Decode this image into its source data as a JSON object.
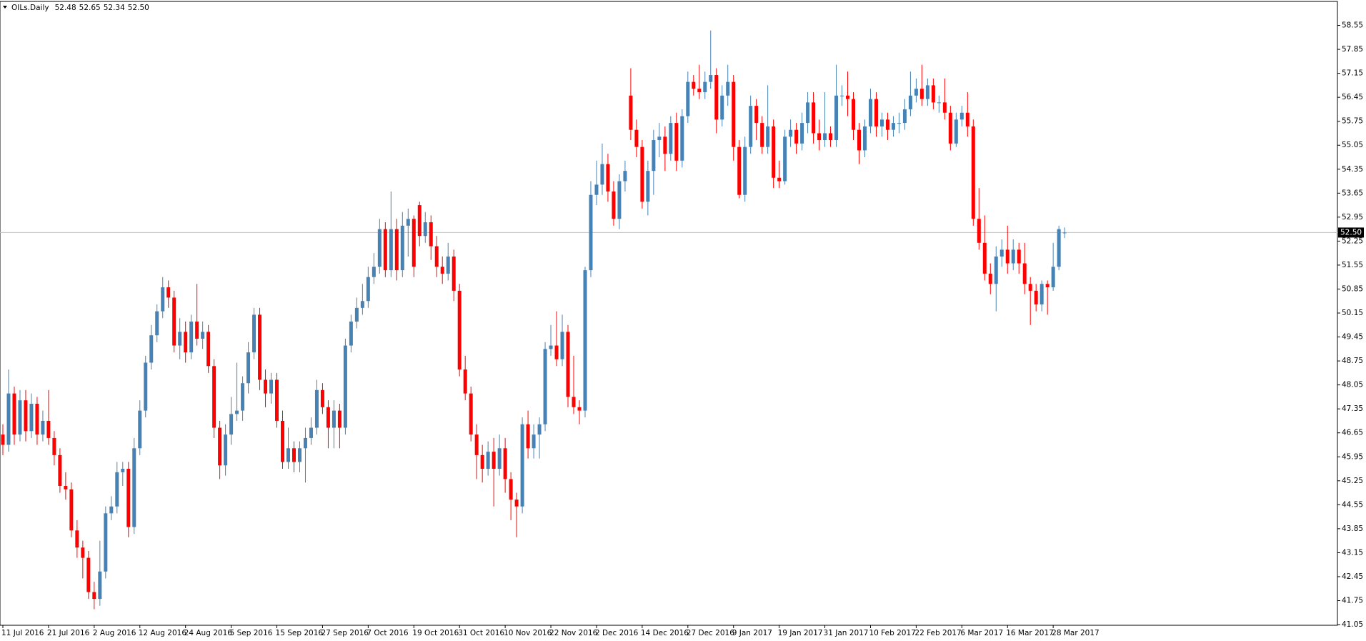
{
  "chart_data": {
    "type": "candlestick",
    "title": "OILs.Daily",
    "ohlc_labels": [
      "52.48",
      "52.65",
      "52.34",
      "52.50"
    ],
    "up_color": "#4682b4",
    "down_color": "#ff0000",
    "price_line": {
      "value": 52.5,
      "label": "52.50"
    },
    "ylim": [
      41.03,
      59.25
    ],
    "yticks": [
      41.05,
      41.75,
      42.45,
      43.15,
      43.85,
      44.55,
      45.25,
      45.95,
      46.65,
      47.35,
      48.05,
      48.75,
      49.45,
      50.15,
      50.85,
      51.55,
      52.25,
      52.95,
      53.65,
      54.35,
      55.05,
      55.75,
      56.45,
      57.15,
      57.85,
      58.55
    ],
    "categories": [
      "11 Jul 2016",
      null,
      null,
      null,
      null,
      null,
      null,
      null,
      "21 Jul 2016",
      null,
      null,
      null,
      null,
      null,
      null,
      null,
      "2 Aug 2016",
      null,
      null,
      null,
      null,
      null,
      null,
      null,
      "12 Aug 2016",
      null,
      null,
      null,
      null,
      null,
      null,
      null,
      "24 Aug 2016",
      null,
      null,
      null,
      null,
      null,
      null,
      null,
      "5 Sep 2016",
      null,
      null,
      null,
      null,
      null,
      null,
      null,
      "15 Sep 2016",
      null,
      null,
      null,
      null,
      null,
      null,
      null,
      "27 Sep 2016",
      null,
      null,
      null,
      null,
      null,
      null,
      null,
      "7 Oct 2016",
      null,
      null,
      null,
      null,
      null,
      null,
      null,
      "19 Oct 2016",
      null,
      null,
      null,
      null,
      null,
      null,
      null,
      "31 Oct 2016",
      null,
      null,
      null,
      null,
      null,
      null,
      null,
      "10 Nov 2016",
      null,
      null,
      null,
      null,
      null,
      null,
      null,
      "22 Nov 2016",
      null,
      null,
      null,
      null,
      null,
      null,
      null,
      "2 Dec 2016",
      null,
      null,
      null,
      null,
      null,
      null,
      null,
      "14 Dec 2016",
      null,
      null,
      null,
      null,
      null,
      null,
      null,
      "27 Dec 2016",
      null,
      null,
      null,
      null,
      null,
      null,
      null,
      "9 Jan 2017",
      null,
      null,
      null,
      null,
      null,
      null,
      null,
      "19 Jan 2017",
      null,
      null,
      null,
      null,
      null,
      null,
      null,
      "31 Jan 2017",
      null,
      null,
      null,
      null,
      null,
      null,
      null,
      "10 Feb 2017",
      null,
      null,
      null,
      null,
      null,
      null,
      null,
      "22 Feb 2017",
      null,
      null,
      null,
      null,
      null,
      null,
      null,
      "6 Mar 2017",
      null,
      null,
      null,
      null,
      null,
      null,
      null,
      "16 Mar 2017",
      null,
      null,
      null,
      null,
      null,
      null,
      null,
      "28 Mar 2017",
      null,
      null
    ],
    "open": [
      46.6,
      46.3,
      47.8,
      46.6,
      47.6,
      46.7,
      47.5,
      46.6,
      47.0,
      46.5,
      46.0,
      45.1,
      45.0,
      43.8,
      43.3,
      43.0,
      42.0,
      41.8,
      42.6,
      44.3,
      44.5,
      45.5,
      45.6,
      43.9,
      46.2,
      47.3,
      48.7,
      49.5,
      50.2,
      50.9,
      50.6,
      49.2,
      49.6,
      49.0,
      49.9,
      49.4,
      49.6,
      48.6,
      46.8,
      45.7,
      46.6,
      47.2,
      47.3,
      48.1,
      49.0,
      50.1,
      48.2,
      47.8,
      48.2,
      47.0,
      45.8,
      46.2,
      45.8,
      46.2,
      46.5,
      46.8,
      47.9,
      47.4,
      46.8,
      47.3,
      46.8,
      49.2,
      49.9,
      50.3,
      50.5,
      51.2,
      51.5,
      52.6,
      51.4,
      52.6,
      51.4,
      52.7,
      52.9,
      53.3,
      52.4,
      52.8,
      52.1,
      51.5,
      51.3,
      51.8,
      50.8,
      48.5,
      47.8,
      46.6,
      46.0,
      45.6,
      46.1,
      45.6,
      46.2,
      45.3,
      44.7,
      44.5,
      46.9,
      46.2,
      46.6,
      46.9,
      49.1,
      49.2,
      48.8,
      49.6,
      47.7,
      47.4,
      47.3,
      51.4,
      53.6,
      53.9,
      54.5,
      53.7,
      52.9,
      54.0,
      56.5,
      55.5,
      55.0,
      53.4,
      54.3,
      55.2,
      55.3,
      54.8,
      55.7,
      54.6,
      55.9,
      56.9,
      56.7,
      56.6,
      56.9,
      57.1,
      55.8,
      56.5,
      56.9,
      55.0,
      53.6,
      55.0,
      56.2,
      55.7,
      55.0,
      55.6,
      54.1,
      54.0,
      55.3,
      55.5,
      55.1,
      55.7,
      56.3,
      55.4,
      55.2,
      55.4,
      55.2,
      56.5,
      56.5,
      56.4,
      55.5,
      54.9,
      55.6,
      56.4,
      55.6,
      55.8,
      55.5,
      55.7,
      55.7,
      56.1,
      56.5,
      56.7,
      56.4,
      56.8,
      56.3,
      56.3,
      56.0,
      55.1,
      55.8,
      56.0,
      55.6,
      52.9,
      52.2,
      51.3,
      51.0,
      51.8,
      52.0,
      51.6,
      52.0,
      51.6,
      51.0,
      50.8,
      50.4,
      51.0,
      50.9,
      51.5,
      52.48
    ],
    "high": [
      46.9,
      48.5,
      48.0,
      47.9,
      47.9,
      47.8,
      47.7,
      47.3,
      47.9,
      46.7,
      46.2,
      45.5,
      45.2,
      44.1,
      43.5,
      43.2,
      42.3,
      43.5,
      44.5,
      44.8,
      45.8,
      45.8,
      45.8,
      46.5,
      47.6,
      48.9,
      49.8,
      50.4,
      51.2,
      51.1,
      50.8,
      50.0,
      49.9,
      50.1,
      51.0,
      49.9,
      49.8,
      48.8,
      47.0,
      46.9,
      47.7,
      48.7,
      48.3,
      49.3,
      50.3,
      50.3,
      48.5,
      48.4,
      48.4,
      47.3,
      46.8,
      46.4,
      46.4,
      46.8,
      47.1,
      48.2,
      48.1,
      47.6,
      47.6,
      47.5,
      49.4,
      50.1,
      50.6,
      51.0,
      51.5,
      51.9,
      52.9,
      52.8,
      53.7,
      52.9,
      53.1,
      53.2,
      53.0,
      53.4,
      53.1,
      53.0,
      52.4,
      51.8,
      52.2,
      52.0,
      51.0,
      48.9,
      48.0,
      46.9,
      46.3,
      46.4,
      46.5,
      46.6,
      46.5,
      45.5,
      44.9,
      47.1,
      47.3,
      46.9,
      47.1,
      49.3,
      49.8,
      50.2,
      50.1,
      49.8,
      48.9,
      47.6,
      51.5,
      54.0,
      54.6,
      55.1,
      54.8,
      54.0,
      54.2,
      54.6,
      57.3,
      55.8,
      55.2,
      54.6,
      55.5,
      55.7,
      55.6,
      55.9,
      56.0,
      56.1,
      57.2,
      57.1,
      57.4,
      57.2,
      58.4,
      57.3,
      56.8,
      57.4,
      57.1,
      55.2,
      55.3,
      56.5,
      56.4,
      55.9,
      56.8,
      55.8,
      54.6,
      55.5,
      55.8,
      55.7,
      56.0,
      56.6,
      56.6,
      55.8,
      56.6,
      55.6,
      57.4,
      56.8,
      57.2,
      56.6,
      55.7,
      55.8,
      56.7,
      56.6,
      56.0,
      56.0,
      55.9,
      56.0,
      56.4,
      57.2,
      57.0,
      57.4,
      57.0,
      57.0,
      56.5,
      57.0,
      56.2,
      56.0,
      56.2,
      56.6,
      55.8,
      53.8,
      53.0,
      51.6,
      52.1,
      52.3,
      52.7,
      52.3,
      52.2,
      52.2,
      51.2,
      51.0,
      51.1,
      51.1,
      52.2,
      52.7,
      52.65
    ],
    "low": [
      46.0,
      46.1,
      46.3,
      46.4,
      46.4,
      46.5,
      46.3,
      46.4,
      46.3,
      45.7,
      44.9,
      44.7,
      43.6,
      43.0,
      42.4,
      41.8,
      41.5,
      41.6,
      42.4,
      44.1,
      44.3,
      45.1,
      43.6,
      43.7,
      46.0,
      47.1,
      48.5,
      49.3,
      50.0,
      50.3,
      49.0,
      48.8,
      48.7,
      48.8,
      49.2,
      49.1,
      48.4,
      46.5,
      45.3,
      45.4,
      46.3,
      47.0,
      47.0,
      47.8,
      48.8,
      47.9,
      47.4,
      47.5,
      46.8,
      45.6,
      45.6,
      45.5,
      45.5,
      45.2,
      46.3,
      46.6,
      47.2,
      46.2,
      46.2,
      46.2,
      46.6,
      49.0,
      49.7,
      50.1,
      50.3,
      51.0,
      51.3,
      51.2,
      51.2,
      51.1,
      51.2,
      51.8,
      51.2,
      52.1,
      52.2,
      51.7,
      51.2,
      51.0,
      51.1,
      50.5,
      48.3,
      47.6,
      46.4,
      45.3,
      45.2,
      45.4,
      44.5,
      45.4,
      44.9,
      44.1,
      43.6,
      44.3,
      45.9,
      45.9,
      45.9,
      46.7,
      48.9,
      48.6,
      48.6,
      47.4,
      47.2,
      46.9,
      47.1,
      51.2,
      53.3,
      53.6,
      53.4,
      52.7,
      52.6,
      53.7,
      55.2,
      54.7,
      53.2,
      53.0,
      53.6,
      54.7,
      54.3,
      54.6,
      54.3,
      54.4,
      55.7,
      56.5,
      56.4,
      56.4,
      56.7,
      55.4,
      55.6,
      56.2,
      54.6,
      53.5,
      53.4,
      54.8,
      55.2,
      54.8,
      54.8,
      53.8,
      53.8,
      53.9,
      55.0,
      54.8,
      54.9,
      55.4,
      55.1,
      54.9,
      55.0,
      55.0,
      55.0,
      56.2,
      55.9,
      55.2,
      54.5,
      54.7,
      55.4,
      55.3,
      55.3,
      55.2,
      55.3,
      55.4,
      55.5,
      55.9,
      56.3,
      56.2,
      56.2,
      56.1,
      56.0,
      55.8,
      54.9,
      55.0,
      55.6,
      55.3,
      52.7,
      52.0,
      51.1,
      50.7,
      50.2,
      51.5,
      51.3,
      51.4,
      51.3,
      50.7,
      49.8,
      50.2,
      50.2,
      50.1,
      50.8,
      51.4,
      52.34
    ],
    "close": [
      46.3,
      47.8,
      46.6,
      47.6,
      46.7,
      47.5,
      46.6,
      47.0,
      46.5,
      46.0,
      45.1,
      45.0,
      43.8,
      43.3,
      43.0,
      42.0,
      41.8,
      42.6,
      44.3,
      44.5,
      45.5,
      45.6,
      43.9,
      46.2,
      47.3,
      48.7,
      49.5,
      50.2,
      50.9,
      50.6,
      49.2,
      49.6,
      49.0,
      49.9,
      49.4,
      49.6,
      48.6,
      46.8,
      45.7,
      46.6,
      47.2,
      47.3,
      48.1,
      49.0,
      50.1,
      48.2,
      47.8,
      48.2,
      47.0,
      45.8,
      46.2,
      45.8,
      46.2,
      46.5,
      46.8,
      47.9,
      47.4,
      46.8,
      47.3,
      46.8,
      49.2,
      49.9,
      50.3,
      50.5,
      51.2,
      51.5,
      52.6,
      51.4,
      52.6,
      51.4,
      52.7,
      52.9,
      51.5,
      52.4,
      52.8,
      52.1,
      51.5,
      51.3,
      51.8,
      50.8,
      48.5,
      47.8,
      46.6,
      46.0,
      45.6,
      46.1,
      45.6,
      46.2,
      45.3,
      44.7,
      44.5,
      46.9,
      46.2,
      46.6,
      46.9,
      49.1,
      49.2,
      48.8,
      49.6,
      47.7,
      47.4,
      47.3,
      51.4,
      53.6,
      53.9,
      54.5,
      53.7,
      52.9,
      54.0,
      54.3,
      55.5,
      55.0,
      53.4,
      54.3,
      55.2,
      55.3,
      54.8,
      55.7,
      54.6,
      55.9,
      56.9,
      56.7,
      56.6,
      56.9,
      57.1,
      55.8,
      56.5,
      56.9,
      55.0,
      53.6,
      55.0,
      56.2,
      55.7,
      55.0,
      55.6,
      54.1,
      54.0,
      55.3,
      55.5,
      55.1,
      55.7,
      56.3,
      55.4,
      55.2,
      55.4,
      55.2,
      56.5,
      56.5,
      56.4,
      55.5,
      54.9,
      55.6,
      56.4,
      55.6,
      55.8,
      55.5,
      55.7,
      55.7,
      56.1,
      56.5,
      56.7,
      56.4,
      56.8,
      56.3,
      56.3,
      56.0,
      55.1,
      55.8,
      56.0,
      55.6,
      52.9,
      52.2,
      51.3,
      51.0,
      51.8,
      52.0,
      51.6,
      52.0,
      51.6,
      51.0,
      50.8,
      50.4,
      51.0,
      50.9,
      51.5,
      52.6,
      52.5
    ]
  }
}
